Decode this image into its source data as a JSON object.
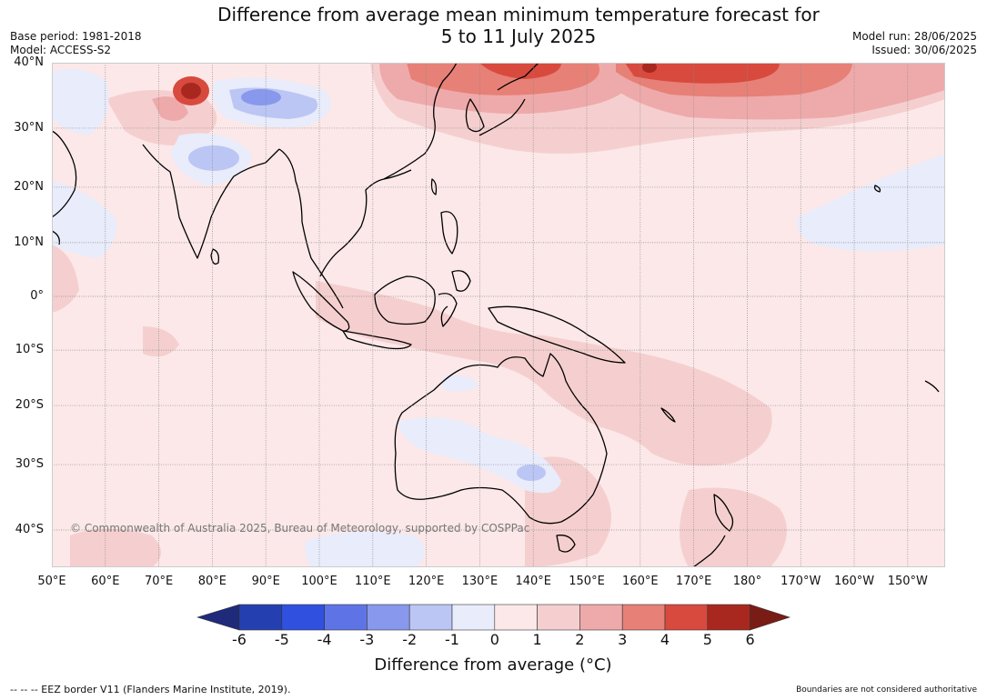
{
  "title_line1": "Difference from average mean minimum temperature forecast for",
  "title_line2": "5 to 11 July 2025",
  "base_period": "Base period: 1981-2018",
  "model": "Model: ACCESS-S2",
  "model_run": "Model run: 28/06/2025",
  "issued": "Issued: 30/06/2025",
  "copyright": "© Commonwealth of Australia 2025, Bureau of Meteorology, supported by COSPPac",
  "lat_labels": [
    "40°N",
    "30°N",
    "20°N",
    "10°N",
    "0°",
    "10°S",
    "20°S",
    "30°S",
    "40°S"
  ],
  "lat_values": [
    40,
    30,
    20,
    10,
    0,
    -10,
    -20,
    -30,
    -40
  ],
  "lon_labels": [
    "50°E",
    "60°E",
    "70°E",
    "80°E",
    "90°E",
    "100°E",
    "110°E",
    "120°E",
    "130°E",
    "140°E",
    "150°E",
    "160°E",
    "170°E",
    "180°",
    "170°W",
    "160°W",
    "150°W"
  ],
  "lon_values": [
    50,
    60,
    70,
    80,
    90,
    100,
    110,
    120,
    130,
    140,
    150,
    160,
    170,
    180,
    190,
    200,
    210
  ],
  "colorbar": {
    "ticks": [
      "-6",
      "-5",
      "-4",
      "-3",
      "-2",
      "-1",
      "0",
      "1",
      "2",
      "3",
      "4",
      "5",
      "6"
    ],
    "colors": [
      "#1f2a7a",
      "#2440b0",
      "#3050e0",
      "#5e74e6",
      "#8898ec",
      "#bcc6f4",
      "#e8ecfb",
      "#fce8e8",
      "#f5cfcf",
      "#eeaaaa",
      "#e78077",
      "#d84a3e",
      "#a8281f",
      "#7a1c16"
    ],
    "label": "Difference from average (°C)"
  },
  "footer_left": "--  --  -- EEZ border V11 (Flanders Marine Institute, 2019).",
  "footer_right": "Boundaries are not considered authoritative"
}
